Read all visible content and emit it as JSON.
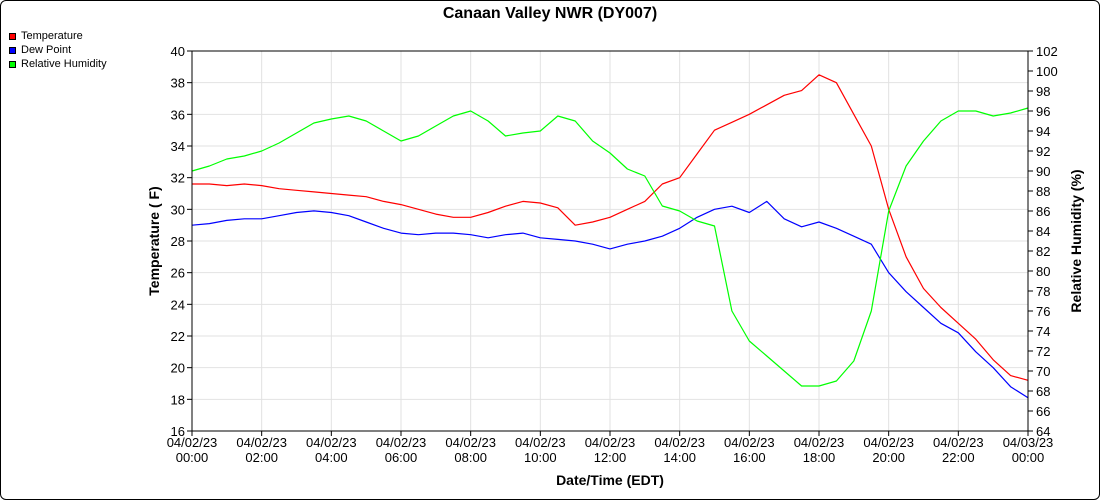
{
  "chart_data": {
    "type": "line",
    "title": "Canaan Valley NWR (DY007)",
    "xlabel": "Date/Time (EDT)",
    "ylabel_left": "Temperature ( F)",
    "ylabel_right": "Relative Humidity (%)",
    "ylim_left": [
      16,
      40
    ],
    "ylim_right": [
      64,
      102
    ],
    "grid": true,
    "legend_position": "top-left",
    "x_ticks": [
      {
        "h": 0,
        "date": "04/02/23",
        "time": "00:00"
      },
      {
        "h": 2,
        "date": "04/02/23",
        "time": "02:00"
      },
      {
        "h": 4,
        "date": "04/02/23",
        "time": "04:00"
      },
      {
        "h": 6,
        "date": "04/02/23",
        "time": "06:00"
      },
      {
        "h": 8,
        "date": "04/02/23",
        "time": "08:00"
      },
      {
        "h": 10,
        "date": "04/02/23",
        "time": "10:00"
      },
      {
        "h": 12,
        "date": "04/02/23",
        "time": "12:00"
      },
      {
        "h": 14,
        "date": "04/02/23",
        "time": "14:00"
      },
      {
        "h": 16,
        "date": "04/02/23",
        "time": "16:00"
      },
      {
        "h": 18,
        "date": "04/02/23",
        "time": "18:00"
      },
      {
        "h": 20,
        "date": "04/02/23",
        "time": "20:00"
      },
      {
        "h": 22,
        "date": "04/02/23",
        "time": "22:00"
      },
      {
        "h": 24,
        "date": "04/03/23",
        "time": "00:00"
      }
    ],
    "y_ticks_left": [
      16,
      18,
      20,
      22,
      24,
      26,
      28,
      30,
      32,
      34,
      36,
      38,
      40
    ],
    "y_ticks_right": [
      64,
      66,
      68,
      70,
      72,
      74,
      76,
      78,
      80,
      82,
      84,
      86,
      88,
      90,
      92,
      94,
      96,
      98,
      100,
      102
    ],
    "series": [
      {
        "name": "Temperature",
        "color": "#ff0000",
        "axis": "left",
        "points": [
          [
            0,
            31.6
          ],
          [
            0.5,
            31.6
          ],
          [
            1,
            31.5
          ],
          [
            1.5,
            31.6
          ],
          [
            2,
            31.5
          ],
          [
            2.5,
            31.3
          ],
          [
            3,
            31.2
          ],
          [
            3.5,
            31.1
          ],
          [
            4,
            31.0
          ],
          [
            4.5,
            30.9
          ],
          [
            5,
            30.8
          ],
          [
            5.5,
            30.5
          ],
          [
            6,
            30.3
          ],
          [
            6.5,
            30.0
          ],
          [
            7,
            29.7
          ],
          [
            7.5,
            29.5
          ],
          [
            8,
            29.5
          ],
          [
            8.5,
            29.8
          ],
          [
            9,
            30.2
          ],
          [
            9.5,
            30.5
          ],
          [
            10,
            30.4
          ],
          [
            10.5,
            30.1
          ],
          [
            11,
            29.0
          ],
          [
            11.5,
            29.2
          ],
          [
            12,
            29.5
          ],
          [
            12.5,
            30.0
          ],
          [
            13,
            30.5
          ],
          [
            13.5,
            31.6
          ],
          [
            14,
            32.0
          ],
          [
            14.5,
            33.5
          ],
          [
            15,
            35.0
          ],
          [
            15.5,
            35.5
          ],
          [
            16,
            36.0
          ],
          [
            16.5,
            36.6
          ],
          [
            17,
            37.2
          ],
          [
            17.5,
            37.5
          ],
          [
            18,
            38.5
          ],
          [
            18.5,
            38.0
          ],
          [
            19,
            36.0
          ],
          [
            19.5,
            34.0
          ],
          [
            20,
            30.0
          ],
          [
            20.5,
            27.0
          ],
          [
            21,
            25.0
          ],
          [
            21.5,
            23.8
          ],
          [
            22,
            22.8
          ],
          [
            22.5,
            21.8
          ],
          [
            23,
            20.5
          ],
          [
            23.5,
            19.5
          ],
          [
            24,
            19.2
          ]
        ]
      },
      {
        "name": "Dew Point",
        "color": "#0000ff",
        "axis": "left",
        "points": [
          [
            0,
            29.0
          ],
          [
            0.5,
            29.1
          ],
          [
            1,
            29.3
          ],
          [
            1.5,
            29.4
          ],
          [
            2,
            29.4
          ],
          [
            2.5,
            29.6
          ],
          [
            3,
            29.8
          ],
          [
            3.5,
            29.9
          ],
          [
            4,
            29.8
          ],
          [
            4.5,
            29.6
          ],
          [
            5,
            29.2
          ],
          [
            5.5,
            28.8
          ],
          [
            6,
            28.5
          ],
          [
            6.5,
            28.4
          ],
          [
            7,
            28.5
          ],
          [
            7.5,
            28.5
          ],
          [
            8,
            28.4
          ],
          [
            8.5,
            28.2
          ],
          [
            9,
            28.4
          ],
          [
            9.5,
            28.5
          ],
          [
            10,
            28.2
          ],
          [
            10.5,
            28.1
          ],
          [
            11,
            28.0
          ],
          [
            11.5,
            27.8
          ],
          [
            12,
            27.5
          ],
          [
            12.5,
            27.8
          ],
          [
            13,
            28.0
          ],
          [
            13.5,
            28.3
          ],
          [
            14,
            28.8
          ],
          [
            14.5,
            29.5
          ],
          [
            15,
            30.0
          ],
          [
            15.5,
            30.2
          ],
          [
            16,
            29.8
          ],
          [
            16.5,
            30.5
          ],
          [
            17,
            29.4
          ],
          [
            17.5,
            28.9
          ],
          [
            18,
            29.2
          ],
          [
            18.5,
            28.8
          ],
          [
            19,
            28.3
          ],
          [
            19.5,
            27.8
          ],
          [
            20,
            26.0
          ],
          [
            20.5,
            24.8
          ],
          [
            21,
            23.8
          ],
          [
            21.5,
            22.8
          ],
          [
            22,
            22.2
          ],
          [
            22.5,
            21.0
          ],
          [
            23,
            20.0
          ],
          [
            23.5,
            18.8
          ],
          [
            24,
            18.1
          ]
        ]
      },
      {
        "name": "Relative Humidity",
        "color": "#00ff00",
        "axis": "right",
        "points": [
          [
            0,
            90.0
          ],
          [
            0.5,
            90.5
          ],
          [
            1,
            91.2
          ],
          [
            1.5,
            91.5
          ],
          [
            2,
            92.0
          ],
          [
            2.5,
            92.8
          ],
          [
            3,
            93.8
          ],
          [
            3.5,
            94.8
          ],
          [
            4,
            95.2
          ],
          [
            4.5,
            95.5
          ],
          [
            5,
            95.0
          ],
          [
            5.5,
            94.0
          ],
          [
            6,
            93.0
          ],
          [
            6.5,
            93.5
          ],
          [
            7,
            94.5
          ],
          [
            7.5,
            95.5
          ],
          [
            8,
            96.0
          ],
          [
            8.5,
            95.0
          ],
          [
            9,
            93.5
          ],
          [
            9.5,
            93.8
          ],
          [
            10,
            94.0
          ],
          [
            10.5,
            95.5
          ],
          [
            11,
            95.0
          ],
          [
            11.5,
            93.0
          ],
          [
            12,
            91.8
          ],
          [
            12.5,
            90.2
          ],
          [
            13,
            89.5
          ],
          [
            13.5,
            86.5
          ],
          [
            14,
            86.0
          ],
          [
            14.5,
            85.0
          ],
          [
            15,
            84.5
          ],
          [
            15.5,
            76.0
          ],
          [
            16,
            73.0
          ],
          [
            16.5,
            71.5
          ],
          [
            17,
            70.0
          ],
          [
            17.5,
            68.5
          ],
          [
            18,
            68.5
          ],
          [
            18.5,
            69.0
          ],
          [
            19,
            71.0
          ],
          [
            19.5,
            76.0
          ],
          [
            20,
            86.0
          ],
          [
            20.5,
            90.5
          ],
          [
            21,
            93.0
          ],
          [
            21.5,
            95.0
          ],
          [
            22,
            96.0
          ],
          [
            22.5,
            96.0
          ],
          [
            23,
            95.5
          ],
          [
            23.5,
            95.8
          ],
          [
            24,
            96.3
          ]
        ]
      }
    ]
  }
}
